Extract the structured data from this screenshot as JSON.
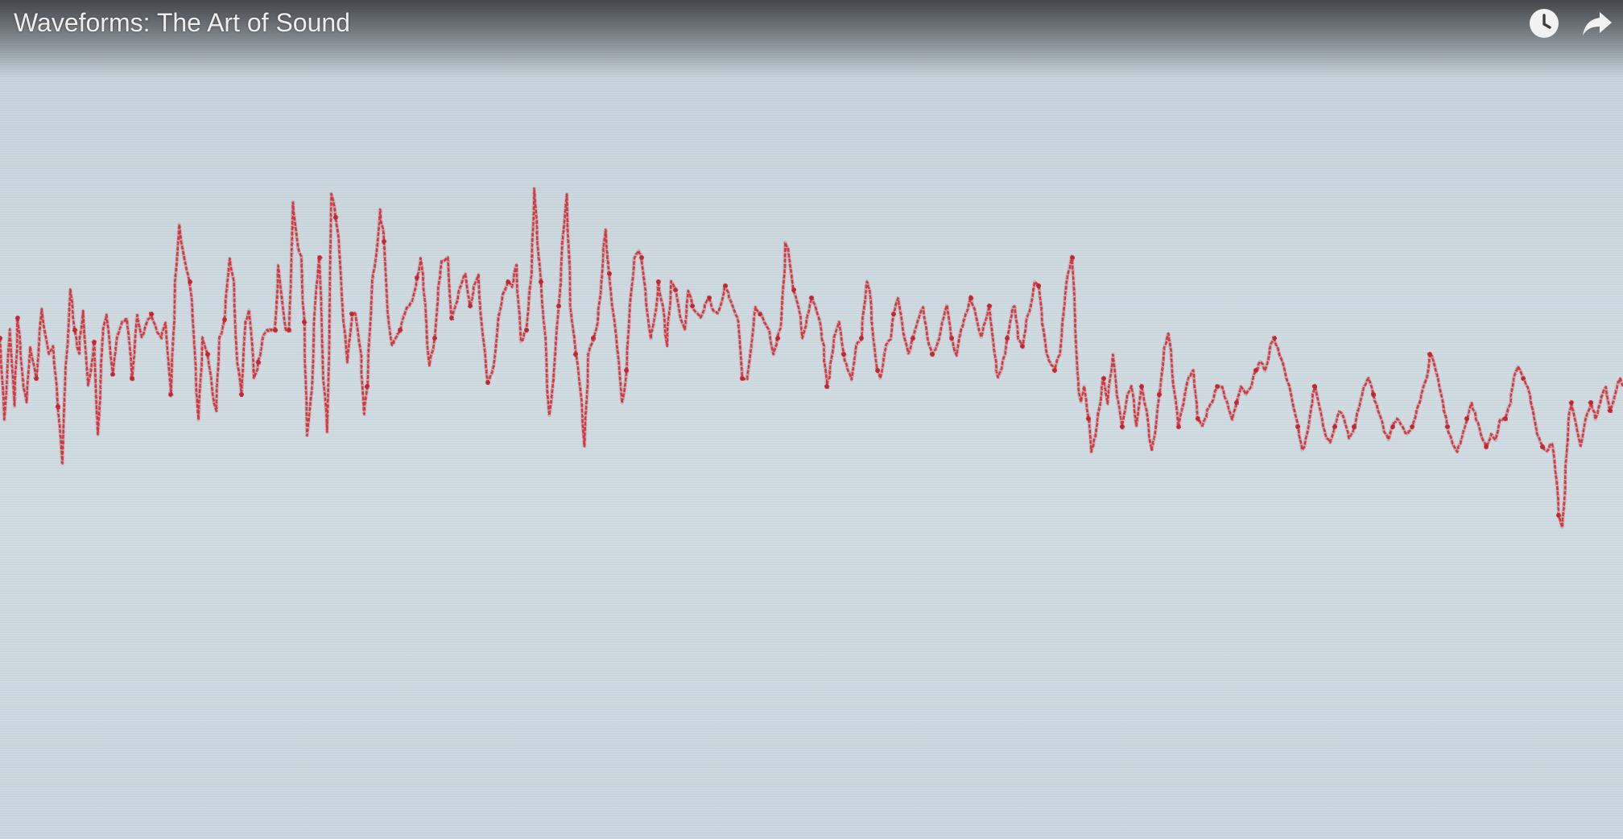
{
  "video": {
    "title": "Waveforms: The Art of Sound"
  },
  "controls": {
    "watch_later_icon": "clock-icon",
    "share_icon": "share-arrow-icon"
  },
  "colors": {
    "thread": "#d8363d",
    "fabric": "#cbd7de",
    "title_text": "#eeeeee"
  }
}
